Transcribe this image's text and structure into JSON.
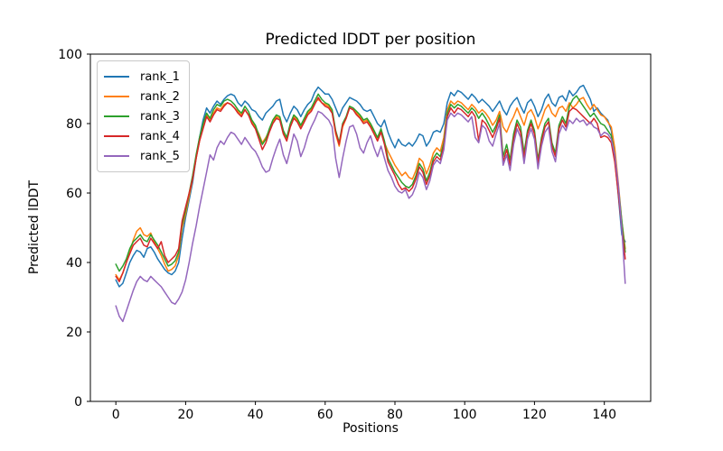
{
  "title": "Predicted lDDT per position",
  "xlabel": "Positions",
  "ylabel": "Predicted lDDT",
  "legend": {
    "position": "upper-left",
    "items": [
      "rank_1",
      "rank_2",
      "rank_3",
      "rank_4",
      "rank_5"
    ]
  },
  "colors": {
    "rank_1": "#1f77b4",
    "rank_2": "#ff7f0e",
    "rank_3": "#2ca02c",
    "rank_4": "#d62728",
    "rank_5": "#9467bd",
    "axis": "#000000",
    "background": "#ffffff"
  },
  "chart_data": {
    "type": "line",
    "title": "Predicted lDDT per position",
    "xlabel": "Positions",
    "ylabel": "Predicted lDDT",
    "xlim": [
      -7.3,
      153.3
    ],
    "ylim": [
      0,
      100
    ],
    "xticks": [
      0,
      20,
      40,
      60,
      80,
      100,
      120,
      140
    ],
    "yticks": [
      0,
      20,
      40,
      60,
      80,
      100
    ],
    "grid": false,
    "legend_position": "upper left",
    "x_start": 0,
    "x_step": 1,
    "n_points": 147,
    "series": [
      {
        "name": "rank_1",
        "color": "#1f77b4",
        "values": [
          35,
          33,
          34,
          37,
          40,
          42,
          43.5,
          43,
          41.5,
          44,
          44.5,
          43,
          41,
          39.5,
          38,
          37,
          36.5,
          37.5,
          40,
          47,
          53,
          58,
          63,
          70,
          76,
          81,
          84.5,
          83,
          85,
          86.5,
          85.5,
          87,
          88,
          88.5,
          88,
          86,
          85,
          86.5,
          85.5,
          84,
          83.5,
          82,
          81,
          83,
          84,
          85,
          86.5,
          87,
          82.5,
          80.5,
          83,
          85,
          84,
          82,
          84,
          85.5,
          86.5,
          89,
          90.5,
          89.5,
          88.5,
          88.5,
          87,
          84.5,
          82,
          84.5,
          86,
          87.5,
          87,
          86.5,
          85.5,
          84,
          83.5,
          84,
          82,
          80,
          79,
          81,
          77.5,
          75,
          73,
          75.5,
          74,
          73.5,
          74.5,
          73.5,
          75,
          77,
          76.5,
          73.5,
          75,
          77.5,
          78,
          77.5,
          80,
          86,
          89,
          88,
          89.5,
          89,
          88,
          87,
          88.5,
          87.5,
          86,
          87,
          86,
          85,
          83.5,
          85,
          86.5,
          84,
          82.5,
          85,
          86.5,
          87.5,
          85,
          83,
          86,
          87,
          85,
          82,
          84,
          87,
          88.5,
          86,
          85,
          87.5,
          88,
          86.5,
          89.5,
          88,
          89,
          90.5,
          91,
          89,
          87,
          83.5,
          84.5,
          83,
          82,
          81,
          78,
          70,
          59.5,
          48,
          46
        ]
      },
      {
        "name": "rank_2",
        "color": "#ff7f0e",
        "values": [
          36.5,
          35,
          37,
          40,
          43,
          46.5,
          49,
          50,
          48,
          47.5,
          48.5,
          46,
          44,
          42,
          39.5,
          37.5,
          38,
          39,
          42,
          50,
          54,
          59,
          64,
          70,
          75,
          79,
          82.5,
          81,
          83,
          84.5,
          84,
          85.5,
          86,
          85.5,
          84.5,
          83.5,
          82.5,
          84,
          82.5,
          80.5,
          79,
          77,
          74.5,
          76,
          78,
          80.5,
          82,
          81.5,
          77.5,
          75.5,
          79.5,
          82,
          81,
          79,
          81,
          83,
          84,
          86,
          87,
          86,
          85.5,
          85,
          83.5,
          77,
          73.5,
          79,
          81.5,
          84.5,
          84,
          83,
          82,
          80.5,
          81,
          79.5,
          77.5,
          75.5,
          78,
          74.5,
          72,
          70,
          68,
          66.5,
          65,
          66,
          64.5,
          64,
          66.5,
          70,
          69,
          65.5,
          68,
          71.5,
          73,
          72,
          76,
          84,
          86.5,
          85.5,
          86.5,
          86,
          85,
          84,
          85.5,
          84.5,
          83,
          84,
          83,
          81.5,
          79.5,
          81,
          83.5,
          79,
          77.5,
          80,
          82,
          84.5,
          82,
          79.5,
          83,
          84,
          82,
          78.5,
          81,
          84,
          85.5,
          83,
          82,
          84.5,
          85,
          83.5,
          86,
          84.5,
          85.5,
          87,
          87.5,
          85.5,
          84,
          85.5,
          84,
          82.5,
          82,
          80.5,
          79,
          73,
          63,
          52,
          44
        ]
      },
      {
        "name": "rank_3",
        "color": "#2ca02c",
        "values": [
          39.5,
          37.5,
          39,
          41,
          44,
          46,
          47,
          48,
          46.5,
          46,
          48,
          46.5,
          45,
          43,
          41,
          39,
          39.5,
          40.5,
          43,
          51,
          55,
          60,
          65,
          71,
          76,
          80,
          83,
          81.5,
          84,
          85.5,
          85,
          86.5,
          87,
          86.5,
          85.5,
          84,
          83,
          85,
          83.5,
          81,
          79.5,
          76.5,
          74,
          75.5,
          78.5,
          81,
          82.5,
          82,
          78,
          76,
          80,
          82.5,
          81.5,
          79.5,
          81.5,
          83.5,
          84.5,
          86.5,
          88.5,
          87,
          86,
          85.5,
          84,
          78,
          74.5,
          80,
          82,
          85,
          84.5,
          83.5,
          82.5,
          81,
          81.5,
          80,
          78,
          76,
          78.5,
          75,
          70,
          68,
          66,
          64.5,
          63,
          62,
          61.5,
          62.5,
          65,
          68.5,
          67,
          63.5,
          66,
          70,
          71.5,
          70.5,
          74.5,
          83,
          85.5,
          84.5,
          85.5,
          85,
          84,
          83,
          84.5,
          83.5,
          81.5,
          83,
          81.5,
          79.5,
          77.5,
          79.5,
          82.5,
          70.5,
          74,
          69.5,
          77,
          81,
          79,
          71.5,
          78,
          81,
          78,
          69.5,
          76,
          80,
          81.5,
          74.5,
          71.5,
          79.5,
          82,
          80,
          85,
          87,
          88,
          86.5,
          85,
          83.5,
          82,
          83,
          81.5,
          80,
          79.5,
          78,
          76.5,
          71,
          62,
          52,
          43
        ]
      },
      {
        "name": "rank_4",
        "color": "#d62728",
        "values": [
          36,
          34.5,
          37,
          40,
          42.5,
          45,
          46,
          47,
          45,
          44.5,
          47,
          45.5,
          44,
          46,
          42,
          40,
          41,
          42,
          44,
          52,
          56,
          60,
          64,
          70,
          75,
          78.5,
          82,
          80.5,
          82.5,
          84,
          83.5,
          85,
          86,
          85.5,
          84.5,
          83,
          82,
          84,
          82.5,
          80,
          78.5,
          75.5,
          72.5,
          74.5,
          77.5,
          80,
          81.5,
          81,
          77,
          75,
          79,
          81.5,
          80.5,
          78.5,
          80.5,
          82.5,
          83.5,
          85.5,
          87.5,
          86,
          85,
          84.5,
          83,
          77.5,
          74,
          79.5,
          81.5,
          84.5,
          84,
          82.5,
          81.5,
          80,
          80.5,
          79,
          77,
          75,
          77.5,
          74,
          69,
          67,
          65,
          62.5,
          61,
          61.5,
          60.5,
          61.5,
          64,
          67.5,
          66,
          62.5,
          65,
          69,
          70.5,
          69.5,
          73.5,
          82,
          84.5,
          83,
          84.5,
          84,
          83,
          82,
          83.5,
          82,
          75,
          81,
          80,
          78,
          76,
          78.5,
          81.5,
          69,
          72.5,
          68,
          75.5,
          80,
          77.5,
          70,
          77,
          80,
          77,
          68.5,
          75,
          79,
          80.5,
          73.5,
          70.5,
          78.5,
          81,
          79,
          83.5,
          84.5,
          84,
          83,
          82,
          81,
          80,
          81.5,
          80,
          76,
          76.5,
          76,
          74.5,
          69,
          60,
          50,
          41
        ]
      },
      {
        "name": "rank_5",
        "color": "#9467bd",
        "values": [
          27.5,
          24.5,
          23,
          26,
          29,
          32,
          34.5,
          36,
          35,
          34.5,
          36,
          35,
          34,
          33,
          31.5,
          30,
          28.5,
          28,
          29.5,
          31.5,
          35,
          40,
          45.5,
          50.5,
          56,
          61,
          66,
          71,
          69.5,
          73,
          75,
          74,
          76,
          77.5,
          77,
          75.5,
          74,
          76,
          74.5,
          73,
          72,
          70,
          67.5,
          66,
          66.5,
          70,
          73,
          75.5,
          71,
          68.5,
          72.5,
          77,
          75,
          70.5,
          73,
          76.5,
          79,
          81,
          83.5,
          83,
          82,
          81,
          79,
          70,
          64.5,
          70,
          75,
          79,
          79.5,
          77,
          73,
          71.5,
          74.5,
          76.5,
          73,
          70.5,
          73.5,
          70,
          66.5,
          64.5,
          62,
          60.5,
          60,
          61,
          58.5,
          59.5,
          62,
          66,
          64.5,
          61,
          63.5,
          68,
          69.5,
          68.5,
          72.5,
          81,
          83,
          82,
          83,
          82.5,
          81.5,
          80.5,
          82,
          76,
          74.5,
          79.5,
          78.5,
          75,
          73.5,
          77,
          80,
          68,
          71,
          66.5,
          74,
          78.5,
          76,
          68.5,
          75.5,
          78.5,
          75.5,
          67,
          73.5,
          77.5,
          79,
          72,
          69,
          77,
          79.5,
          78,
          81,
          80,
          81.5,
          80.5,
          81,
          79.5,
          80.5,
          79,
          78.5,
          76.5,
          77.5,
          77,
          75.5,
          71,
          62.5,
          50,
          34
        ]
      }
    ]
  }
}
